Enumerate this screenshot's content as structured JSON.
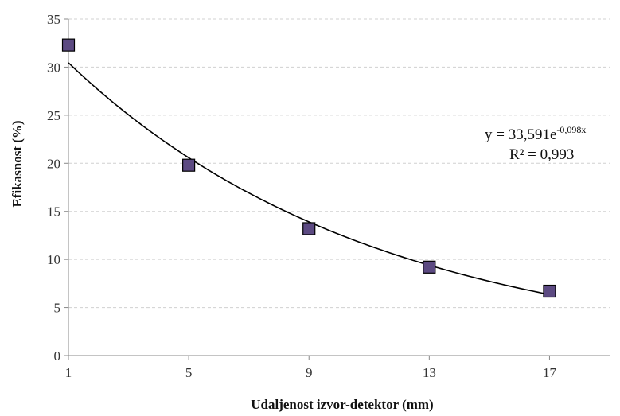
{
  "chart_data": {
    "type": "scatter",
    "xlabel": "Udaljenost izvor-detektor (mm)",
    "ylabel": "Efikasnost (%)",
    "xlim": [
      1,
      19
    ],
    "ylim": [
      0,
      35
    ],
    "x_ticks": [
      "1",
      "5",
      "9",
      "13",
      "17"
    ],
    "y_ticks": [
      "0",
      "5",
      "10",
      "15",
      "20",
      "25",
      "30",
      "35"
    ],
    "grid": true,
    "marker_color": "#5c4a82",
    "series": [
      {
        "x": [
          1,
          5,
          9,
          13,
          17
        ],
        "y": [
          32.3,
          19.8,
          13.2,
          9.2,
          6.7
        ]
      }
    ],
    "trendline": {
      "type": "exponential",
      "a": 33.591,
      "b": -0.098,
      "equation_base": "y = 33,591e",
      "equation_exponent": "-0,098x",
      "r_squared": "R² = 0,993"
    }
  }
}
